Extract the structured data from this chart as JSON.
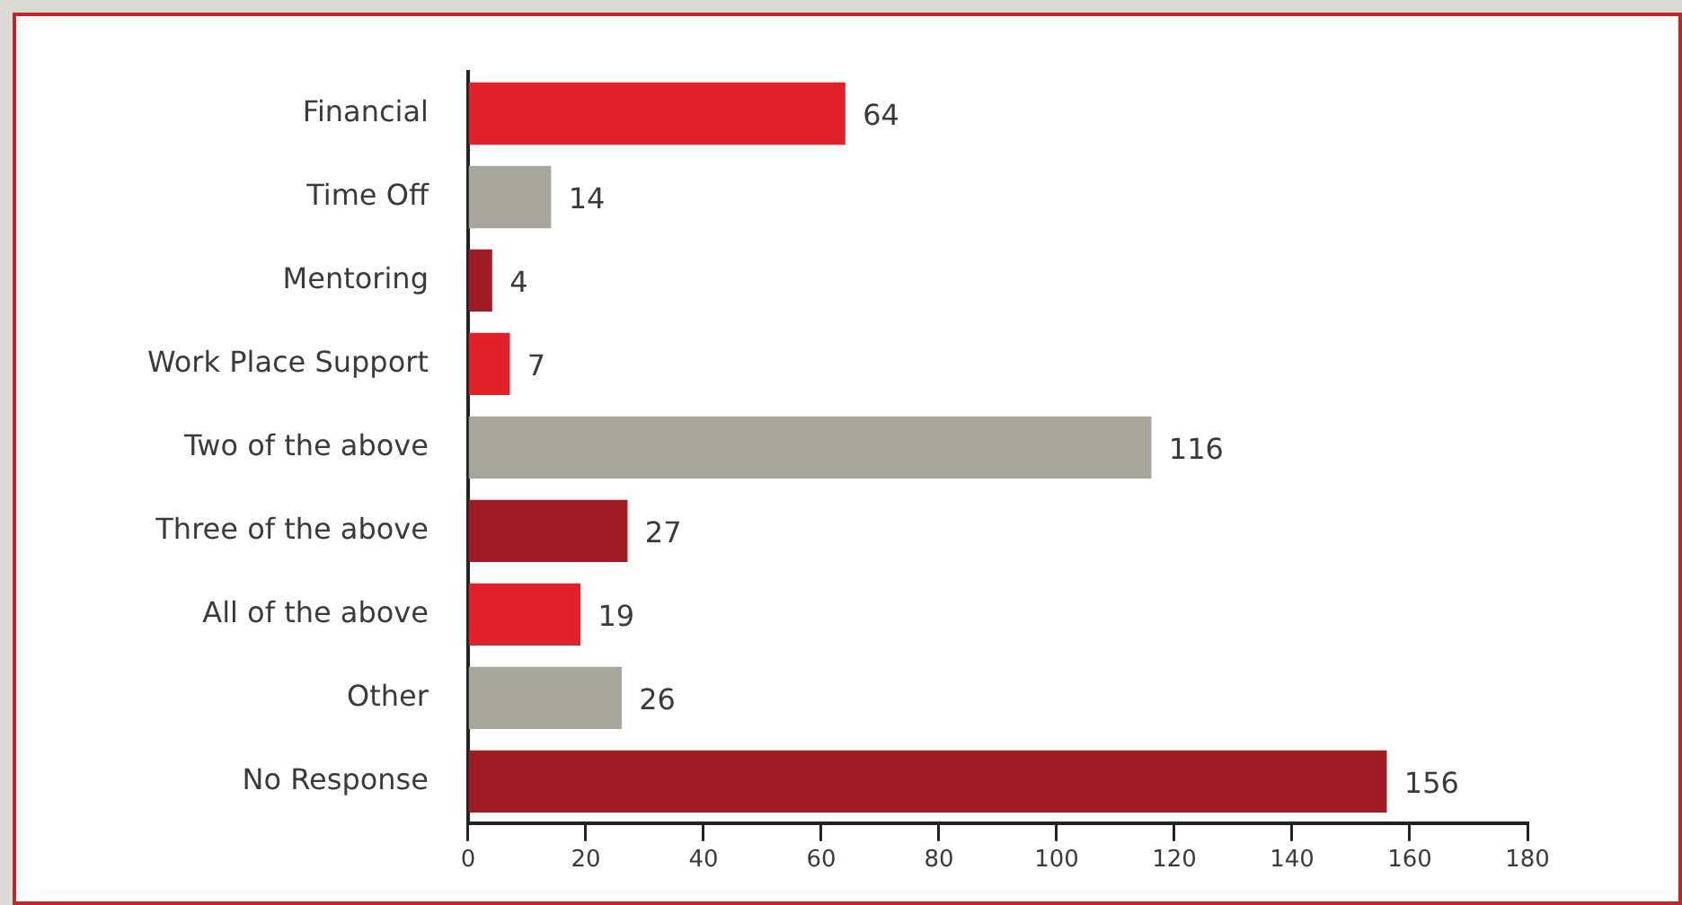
{
  "chart_data": {
    "type": "bar",
    "orientation": "horizontal",
    "categories": [
      "Financial",
      "Time Off",
      "Mentoring",
      "Work Place Support",
      "Two of the above",
      "Three of the above",
      "All of the above",
      "Other",
      "No Response"
    ],
    "values": [
      64,
      14,
      4,
      7,
      116,
      27,
      19,
      26,
      156
    ],
    "colors": [
      "#e0212a",
      "#a8a69a",
      "#a01c24",
      "#e0212a",
      "#a8a69a",
      "#a01c24",
      "#e0212a",
      "#a8a69a",
      "#a01c24"
    ],
    "xlim": [
      0,
      180
    ],
    "xticks": [
      0,
      20,
      40,
      60,
      80,
      100,
      120,
      140,
      160,
      180
    ],
    "data_labels": true,
    "grid": false,
    "legend": false
  }
}
